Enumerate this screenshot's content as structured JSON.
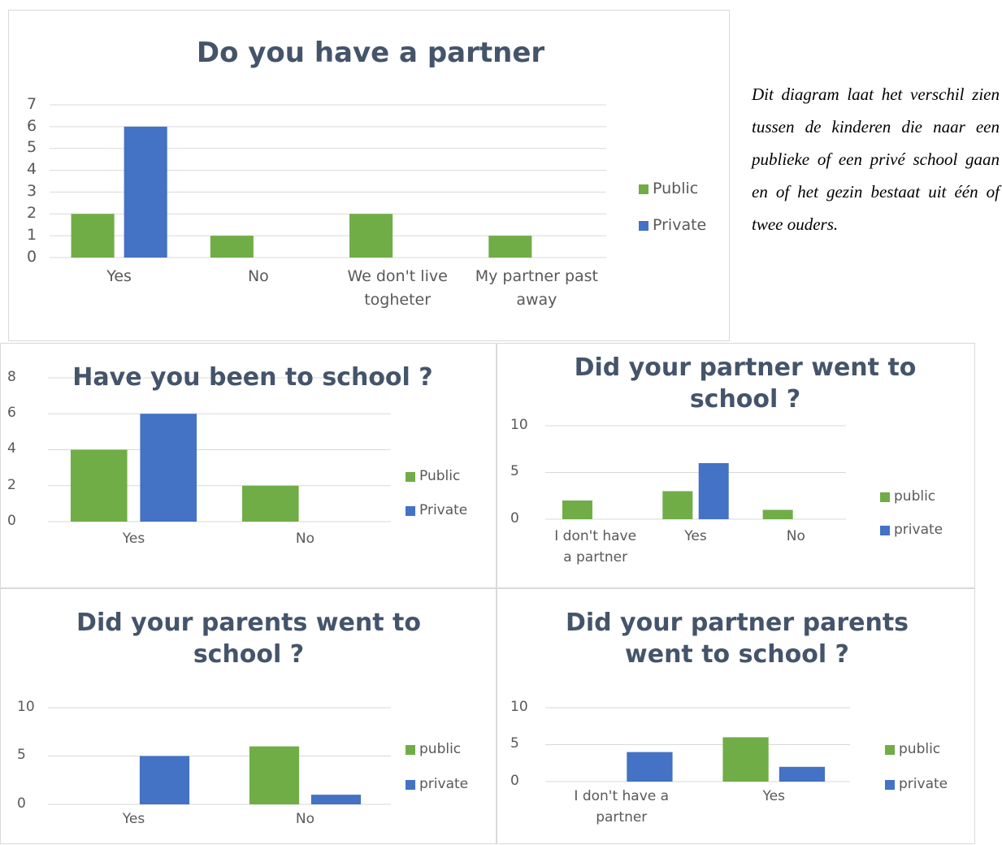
{
  "chart_data": [
    {
      "type": "bar",
      "title": "Do you have a partner",
      "categories": [
        "Yes",
        "No",
        "We don't live togheter",
        "My partner past away"
      ],
      "series": [
        {
          "name": "Public",
          "color": "#70ad47",
          "values": [
            2,
            1,
            2,
            1
          ]
        },
        {
          "name": "Private",
          "color": "#4472c4",
          "values": [
            6,
            null,
            null,
            null
          ]
        }
      ],
      "ylim": [
        0,
        7
      ],
      "yticks": [
        0,
        1,
        2,
        3,
        4,
        5,
        6,
        7
      ],
      "grid": true,
      "legend": "right"
    },
    {
      "type": "bar",
      "title": "Have you been to school ?",
      "categories": [
        "Yes",
        "No"
      ],
      "series": [
        {
          "name": "Public",
          "color": "#70ad47",
          "values": [
            4,
            2
          ]
        },
        {
          "name": "Private",
          "color": "#4472c4",
          "values": [
            6,
            null
          ]
        }
      ],
      "ylim": [
        0,
        8
      ],
      "yticks": [
        0,
        2,
        4,
        6,
        8
      ],
      "grid": true,
      "legend": "right"
    },
    {
      "type": "bar",
      "title": "Did your partner went to school ?",
      "categories": [
        "I don't have a partner",
        "Yes",
        "No"
      ],
      "series": [
        {
          "name": "public",
          "color": "#70ad47",
          "values": [
            2,
            3,
            1
          ]
        },
        {
          "name": "private",
          "color": "#4472c4",
          "values": [
            null,
            6,
            null
          ]
        }
      ],
      "ylim": [
        0,
        10
      ],
      "yticks": [
        0,
        5,
        10
      ],
      "grid": true,
      "legend": "right"
    },
    {
      "type": "bar",
      "title": "Did your parents went to school ?",
      "categories": [
        "Yes",
        "No"
      ],
      "series": [
        {
          "name": "public",
          "color": "#70ad47",
          "values": [
            null,
            6
          ]
        },
        {
          "name": "private",
          "color": "#4472c4",
          "values": [
            5,
            1
          ]
        }
      ],
      "ylim": [
        0,
        10
      ],
      "yticks": [
        0,
        5,
        10
      ],
      "grid": true,
      "legend": "right"
    },
    {
      "type": "bar",
      "title": "Did your partner parents went to school ?",
      "categories": [
        "I don't have a partner",
        "Yes"
      ],
      "series": [
        {
          "name": "public",
          "color": "#70ad47",
          "values": [
            null,
            6
          ]
        },
        {
          "name": "private",
          "color": "#4472c4",
          "values": [
            4,
            2
          ]
        }
      ],
      "ylim": [
        0,
        10
      ],
      "yticks": [
        0,
        5,
        10
      ],
      "grid": true,
      "legend": "right"
    }
  ],
  "text": "Dit diagram laat het verschil zien tussen de kinderen die naar een publieke of een privé school gaan en of het gezin bestaat uit één of twee ouders."
}
